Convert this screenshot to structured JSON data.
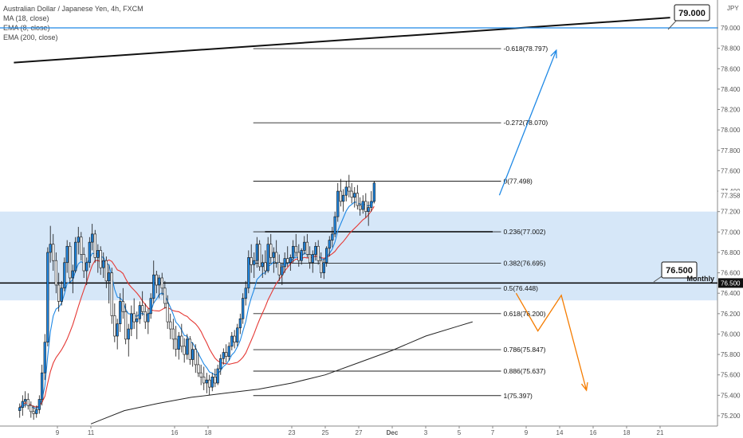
{
  "chart_data": {
    "type": "candlestick",
    "title": "Australian Dollar / Japanese Yen, 4h, FXCM",
    "indicators": [
      "MA (18, close)",
      "EMA (8, close)",
      "EMA (200, close)"
    ],
    "currency_label": "JPY",
    "current_price": "77.358",
    "ylim": [
      75.2,
      79.1
    ],
    "y_ticks": [
      "75.200",
      "75.400",
      "75.600",
      "75.800",
      "76.000",
      "76.200",
      "76.400",
      "76.600",
      "76.800",
      "77.000",
      "77.200",
      "77.400",
      "77.600",
      "77.800",
      "78.000",
      "78.200",
      "78.400",
      "78.600",
      "78.800",
      "79.000"
    ],
    "x_ticks": [
      {
        "label": "9",
        "day": 9
      },
      {
        "label": "11",
        "day": 11
      },
      {
        "label": "16",
        "day": 16
      },
      {
        "label": "18",
        "day": 18
      },
      {
        "label": "23",
        "day": 23
      },
      {
        "label": "25",
        "day": 25
      },
      {
        "label": "27",
        "day": 27
      },
      {
        "label": "Dec",
        "day": 29
      },
      {
        "label": "3",
        "day": 31
      },
      {
        "label": "5",
        "day": 33
      },
      {
        "label": "7",
        "day": 35
      },
      {
        "label": "9",
        "day": 37
      },
      {
        "label": "14",
        "day": 39
      },
      {
        "label": "16",
        "day": 41
      },
      {
        "label": "18",
        "day": 43
      },
      {
        "label": "21",
        "day": 45
      }
    ],
    "fib_levels": [
      {
        "label": "-0.618(78.797)",
        "value": 78.797
      },
      {
        "label": "-0.272(78.070)",
        "value": 78.07
      },
      {
        "label": "0(77.498)",
        "value": 77.498
      },
      {
        "label": "0.236(77.002)",
        "value": 77.002
      },
      {
        "label": "0.382(76.695)",
        "value": 76.695
      },
      {
        "label": "0.5(76.448)",
        "value": 76.448
      },
      {
        "label": "0.618(76.200)",
        "value": 76.2
      },
      {
        "label": "0.786(75.847)",
        "value": 75.847
      },
      {
        "label": "0.886(75.637)",
        "value": 75.637
      },
      {
        "label": "1(75.397)",
        "value": 75.397
      }
    ],
    "fib_range_days": [
      20.7,
      35.5
    ],
    "support_zone": [
      76.33,
      77.2
    ],
    "horizontal_lines": [
      {
        "label": "79.000",
        "value": 79.0,
        "color": "#1e88e5"
      },
      {
        "label": "76.500",
        "value": 76.5,
        "color": "#000000",
        "tag": "Monthly"
      }
    ],
    "trendline": {
      "from": {
        "day": 6.4,
        "value": 78.66
      },
      "to": {
        "day": 45.6,
        "value": 79.1
      }
    },
    "projections": {
      "bullish": {
        "color": "#1e88e5",
        "points": [
          {
            "day": 35.4,
            "value": 77.36
          },
          {
            "day": 38.8,
            "value": 78.78
          }
        ]
      },
      "bearish": {
        "color": "#f57c00",
        "points": [
          {
            "day": 36.4,
            "value": 76.4
          },
          {
            "day": 37.7,
            "value": 76.03
          },
          {
            "day": 39.1,
            "value": 76.38
          },
          {
            "day": 40.6,
            "value": 75.45
          }
        ]
      }
    },
    "candles": [
      [
        6.75,
        75.25,
        75.32,
        75.18,
        75.28
      ],
      [
        6.92,
        75.28,
        75.4,
        75.2,
        75.34
      ],
      [
        7.08,
        75.34,
        75.44,
        75.28,
        75.36
      ],
      [
        7.25,
        75.36,
        75.42,
        75.26,
        75.3
      ],
      [
        7.42,
        75.3,
        75.34,
        75.18,
        75.24
      ],
      [
        7.58,
        75.24,
        75.3,
        75.16,
        75.22
      ],
      [
        7.75,
        75.22,
        75.3,
        75.18,
        75.26
      ],
      [
        7.92,
        75.26,
        75.4,
        75.22,
        75.36
      ],
      [
        8.08,
        75.36,
        75.7,
        75.3,
        75.62
      ],
      [
        8.25,
        75.62,
        76.0,
        75.55,
        75.92
      ],
      [
        8.42,
        75.92,
        76.85,
        75.88,
        76.8
      ],
      [
        8.58,
        76.8,
        77.06,
        76.7,
        76.88
      ],
      [
        8.75,
        76.88,
        76.98,
        76.62,
        76.72
      ],
      [
        8.92,
        76.72,
        76.8,
        76.4,
        76.48
      ],
      [
        9.08,
        76.48,
        76.6,
        76.22,
        76.32
      ],
      [
        9.25,
        76.32,
        76.52,
        76.28,
        76.45
      ],
      [
        9.42,
        76.45,
        76.75,
        76.42,
        76.7
      ],
      [
        9.58,
        76.7,
        76.92,
        76.6,
        76.86
      ],
      [
        9.75,
        76.86,
        76.9,
        76.5,
        76.55
      ],
      [
        9.92,
        76.55,
        76.68,
        76.4,
        76.62
      ],
      [
        10.08,
        76.62,
        76.95,
        76.6,
        76.9
      ],
      [
        10.25,
        76.9,
        77.05,
        76.78,
        76.95
      ],
      [
        10.42,
        76.95,
        77.0,
        76.72,
        76.78
      ],
      [
        10.58,
        76.78,
        76.85,
        76.55,
        76.62
      ],
      [
        10.75,
        76.62,
        76.75,
        76.48,
        76.7
      ],
      [
        10.92,
        76.7,
        76.95,
        76.65,
        76.9
      ],
      [
        11.08,
        76.9,
        77.08,
        76.82,
        76.98
      ],
      [
        11.25,
        76.98,
        77.02,
        76.7,
        76.75
      ],
      [
        11.42,
        76.75,
        76.88,
        76.6,
        76.82
      ],
      [
        11.58,
        76.82,
        76.86,
        76.58,
        76.65
      ],
      [
        11.75,
        76.65,
        76.8,
        76.55,
        76.72
      ],
      [
        11.92,
        76.72,
        76.76,
        76.45,
        76.52
      ],
      [
        12.08,
        76.52,
        76.68,
        76.3,
        76.6
      ],
      [
        12.25,
        76.6,
        76.65,
        76.1,
        76.18
      ],
      [
        12.42,
        76.18,
        76.3,
        75.92,
        75.98
      ],
      [
        12.58,
        75.98,
        76.15,
        75.85,
        76.1
      ],
      [
        12.75,
        76.1,
        76.4,
        76.02,
        76.32
      ],
      [
        12.92,
        76.32,
        76.45,
        76.15,
        76.22
      ],
      [
        13.08,
        76.22,
        76.3,
        75.9,
        75.95
      ],
      [
        13.25,
        75.95,
        76.1,
        75.78,
        76.05
      ],
      [
        13.42,
        76.05,
        76.28,
        75.98,
        76.2
      ],
      [
        13.58,
        76.2,
        76.35,
        76.05,
        76.12
      ],
      [
        13.75,
        76.12,
        76.22,
        75.95,
        76.15
      ],
      [
        13.92,
        76.15,
        76.32,
        76.1,
        76.28
      ],
      [
        14.08,
        76.28,
        76.42,
        76.18,
        76.22
      ],
      [
        14.25,
        76.22,
        76.3,
        76.05,
        76.12
      ],
      [
        14.42,
        76.12,
        76.25,
        76.0,
        76.2
      ],
      [
        14.58,
        76.2,
        76.4,
        76.15,
        76.35
      ],
      [
        14.75,
        76.35,
        76.72,
        76.3,
        76.58
      ],
      [
        14.92,
        76.58,
        76.62,
        76.4,
        76.48
      ],
      [
        15.08,
        76.48,
        76.58,
        76.35,
        76.55
      ],
      [
        15.25,
        76.55,
        76.6,
        76.38,
        76.45
      ],
      [
        15.42,
        76.45,
        76.52,
        76.25,
        76.3
      ],
      [
        15.58,
        76.3,
        76.38,
        76.05,
        76.12
      ],
      [
        15.75,
        76.12,
        76.2,
        75.95,
        76.05
      ],
      [
        15.92,
        76.05,
        76.15,
        75.85,
        75.95
      ],
      [
        16.08,
        75.95,
        76.08,
        75.78,
        75.85
      ],
      [
        16.25,
        75.85,
        76.02,
        75.75,
        75.98
      ],
      [
        16.42,
        75.98,
        76.1,
        75.82,
        75.88
      ],
      [
        16.58,
        75.88,
        75.96,
        75.72,
        75.8
      ],
      [
        16.75,
        75.8,
        76.0,
        75.75,
        75.95
      ],
      [
        16.92,
        75.95,
        75.98,
        75.7,
        75.75
      ],
      [
        17.08,
        75.75,
        75.92,
        75.68,
        75.85
      ],
      [
        17.25,
        75.85,
        75.9,
        75.62,
        75.7
      ],
      [
        17.42,
        75.7,
        75.82,
        75.58,
        75.62
      ],
      [
        17.58,
        75.62,
        75.7,
        75.5,
        75.58
      ],
      [
        17.75,
        75.58,
        75.68,
        75.45,
        75.52
      ],
      [
        17.92,
        75.52,
        75.62,
        75.42,
        75.55
      ],
      [
        18.08,
        75.55,
        75.6,
        75.4,
        75.48
      ],
      [
        18.25,
        75.48,
        75.62,
        75.44,
        75.58
      ],
      [
        18.42,
        75.58,
        75.66,
        75.48,
        75.52
      ],
      [
        18.58,
        75.52,
        75.7,
        75.5,
        75.66
      ],
      [
        18.75,
        75.66,
        75.8,
        75.6,
        75.76
      ],
      [
        18.92,
        75.76,
        75.86,
        75.7,
        75.82
      ],
      [
        19.08,
        75.82,
        75.9,
        75.72,
        75.78
      ],
      [
        19.25,
        75.78,
        75.92,
        75.74,
        75.88
      ],
      [
        19.42,
        75.88,
        76.02,
        75.84,
        75.98
      ],
      [
        19.58,
        75.98,
        76.04,
        75.86,
        75.92
      ],
      [
        19.75,
        75.92,
        76.1,
        75.88,
        76.06
      ],
      [
        19.92,
        76.06,
        76.2,
        76.0,
        76.15
      ],
      [
        20.08,
        76.15,
        76.4,
        76.1,
        76.35
      ],
      [
        20.25,
        76.35,
        76.52,
        76.28,
        76.45
      ],
      [
        20.42,
        76.45,
        76.82,
        76.4,
        76.75
      ],
      [
        20.58,
        76.75,
        76.88,
        76.6,
        76.68
      ],
      [
        20.75,
        76.68,
        76.8,
        76.55,
        76.72
      ],
      [
        20.92,
        76.72,
        76.95,
        76.65,
        76.88
      ],
      [
        21.08,
        76.88,
        76.92,
        76.62,
        76.66
      ],
      [
        21.25,
        76.66,
        76.78,
        76.55,
        76.7
      ],
      [
        21.42,
        76.7,
        76.82,
        76.58,
        76.62
      ],
      [
        21.58,
        76.62,
        76.95,
        76.6,
        76.88
      ],
      [
        21.75,
        76.88,
        76.98,
        76.7,
        76.75
      ],
      [
        21.92,
        76.75,
        76.85,
        76.6,
        76.8
      ],
      [
        22.08,
        76.8,
        76.92,
        76.65,
        76.7
      ],
      [
        22.25,
        76.7,
        76.78,
        76.52,
        76.58
      ],
      [
        22.42,
        76.58,
        76.7,
        76.48,
        76.66
      ],
      [
        22.58,
        76.66,
        76.8,
        76.6,
        76.74
      ],
      [
        22.75,
        76.74,
        76.86,
        76.66,
        76.7
      ],
      [
        22.92,
        76.7,
        76.78,
        76.62,
        76.75
      ],
      [
        23.08,
        76.75,
        76.92,
        76.7,
        76.86
      ],
      [
        23.25,
        76.86,
        76.98,
        76.76,
        76.8
      ],
      [
        23.42,
        76.8,
        76.88,
        76.66,
        76.72
      ],
      [
        23.58,
        76.72,
        76.84,
        76.68,
        76.82
      ],
      [
        23.75,
        76.82,
        76.96,
        76.78,
        76.9
      ],
      [
        23.92,
        76.9,
        76.98,
        76.75,
        76.78
      ],
      [
        24.08,
        76.78,
        76.86,
        76.64,
        76.7
      ],
      [
        24.25,
        76.7,
        76.82,
        76.6,
        76.78
      ],
      [
        24.42,
        76.78,
        76.9,
        76.72,
        76.86
      ],
      [
        24.58,
        76.86,
        76.92,
        76.68,
        76.72
      ],
      [
        24.75,
        76.72,
        76.8,
        76.55,
        76.6
      ],
      [
        24.92,
        76.6,
        76.74,
        76.54,
        76.7
      ],
      [
        25.08,
        76.7,
        76.86,
        76.66,
        76.84
      ],
      [
        25.25,
        76.84,
        76.96,
        76.76,
        76.92
      ],
      [
        25.42,
        76.92,
        77.05,
        76.85,
        76.98
      ],
      [
        25.58,
        76.98,
        77.2,
        76.95,
        77.15
      ],
      [
        25.75,
        77.15,
        77.48,
        77.1,
        77.4
      ],
      [
        25.92,
        77.4,
        77.52,
        77.25,
        77.3
      ],
      [
        26.08,
        77.3,
        77.42,
        77.2,
        77.36
      ],
      [
        26.25,
        77.36,
        77.5,
        77.3,
        77.44
      ],
      [
        26.42,
        77.44,
        77.56,
        77.34,
        77.4
      ],
      [
        26.58,
        77.4,
        77.48,
        77.28,
        77.34
      ],
      [
        26.75,
        77.34,
        77.44,
        77.24,
        77.38
      ],
      [
        26.92,
        77.38,
        77.46,
        77.22,
        77.26
      ],
      [
        27.08,
        77.26,
        77.34,
        77.16,
        77.22
      ],
      [
        27.25,
        77.22,
        77.36,
        77.18,
        77.3
      ],
      [
        27.42,
        77.3,
        77.38,
        77.14,
        77.2
      ],
      [
        27.58,
        77.2,
        77.3,
        77.06,
        77.24
      ],
      [
        27.75,
        77.24,
        77.4,
        77.2,
        77.3
      ],
      [
        27.92,
        77.3,
        77.5,
        77.28,
        77.48
      ]
    ]
  }
}
